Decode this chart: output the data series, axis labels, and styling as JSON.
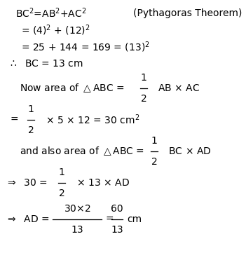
{
  "bg_color": "#ffffff",
  "figsize": [
    3.51,
    3.81
  ],
  "dpi": 100,
  "font_size": 10.0
}
